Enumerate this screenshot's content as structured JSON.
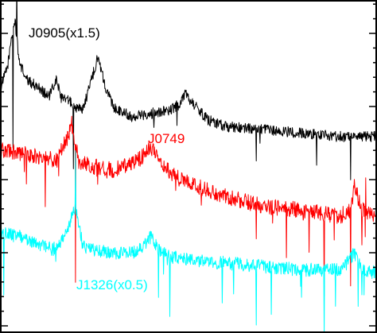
{
  "chart_data": {
    "type": "line",
    "title": "",
    "xlabel": "",
    "ylabel": "",
    "axis_ticks": "left and right edges, no tick labels",
    "x_domain": [
      0,
      1
    ],
    "y_domain": [
      0,
      1
    ],
    "series": [
      {
        "name": "J0905(x1.5)",
        "color": "#000000",
        "noise": 0.016,
        "spikes": [
          [
            0.035,
            -0.34
          ],
          [
            0.045,
            0.2
          ],
          [
            0.195,
            -0.18
          ],
          [
            0.68,
            -0.1
          ],
          [
            0.93,
            -0.12
          ],
          [
            0.84,
            -0.08
          ]
        ],
        "x": [
          0.0,
          0.02,
          0.03,
          0.04,
          0.05,
          0.07,
          0.1,
          0.13,
          0.15,
          0.16,
          0.18,
          0.2,
          0.22,
          0.25,
          0.26,
          0.28,
          0.3,
          0.35,
          0.4,
          0.45,
          0.48,
          0.49,
          0.52,
          0.55,
          0.6,
          0.7,
          0.8,
          0.9,
          1.0
        ],
        "y": [
          0.73,
          0.8,
          0.88,
          0.94,
          0.82,
          0.76,
          0.74,
          0.71,
          0.76,
          0.72,
          0.7,
          0.68,
          0.67,
          0.79,
          0.83,
          0.74,
          0.68,
          0.65,
          0.66,
          0.67,
          0.69,
          0.72,
          0.68,
          0.64,
          0.62,
          0.61,
          0.6,
          0.59,
          0.59
        ]
      },
      {
        "name": "J0749",
        "color": "#ff0000",
        "noise": 0.024,
        "spikes": [
          [
            0.2,
            -0.44
          ],
          [
            0.12,
            -0.13
          ],
          [
            0.76,
            -0.15
          ],
          [
            0.82,
            -0.14
          ],
          [
            0.86,
            -0.25
          ],
          [
            0.93,
            -0.22
          ],
          [
            0.96,
            -0.12
          ],
          [
            0.97,
            0.12
          ],
          [
            0.68,
            -0.09
          ]
        ],
        "x": [
          0.0,
          0.05,
          0.1,
          0.15,
          0.18,
          0.19,
          0.21,
          0.25,
          0.3,
          0.35,
          0.38,
          0.4,
          0.42,
          0.45,
          0.5,
          0.55,
          0.6,
          0.7,
          0.8,
          0.85,
          0.9,
          0.93,
          0.94,
          0.96,
          1.0
        ],
        "y": [
          0.55,
          0.54,
          0.53,
          0.52,
          0.59,
          0.63,
          0.51,
          0.5,
          0.49,
          0.51,
          0.53,
          0.56,
          0.53,
          0.48,
          0.45,
          0.43,
          0.41,
          0.38,
          0.37,
          0.36,
          0.35,
          0.37,
          0.44,
          0.37,
          0.35
        ]
      },
      {
        "name": "J1326(x0.5)",
        "color": "#00ffff",
        "noise": 0.02,
        "spikes": [
          [
            0.01,
            -0.17
          ],
          [
            0.2,
            0.2
          ],
          [
            0.42,
            -0.14
          ],
          [
            0.45,
            -0.18
          ],
          [
            0.59,
            -0.14
          ],
          [
            0.62,
            -0.08
          ],
          [
            0.68,
            -0.16
          ],
          [
            0.72,
            -0.13
          ],
          [
            0.8,
            -0.1
          ],
          [
            0.86,
            -0.19
          ],
          [
            0.89,
            -0.12
          ],
          [
            0.95,
            -0.14
          ]
        ],
        "x": [
          0.0,
          0.05,
          0.1,
          0.14,
          0.16,
          0.18,
          0.19,
          0.2,
          0.22,
          0.25,
          0.3,
          0.35,
          0.38,
          0.4,
          0.42,
          0.45,
          0.5,
          0.6,
          0.7,
          0.8,
          0.9,
          0.92,
          0.94,
          0.96,
          1.0
        ],
        "y": [
          0.3,
          0.29,
          0.27,
          0.25,
          0.27,
          0.31,
          0.35,
          0.38,
          0.26,
          0.25,
          0.24,
          0.24,
          0.26,
          0.29,
          0.25,
          0.23,
          0.22,
          0.21,
          0.2,
          0.19,
          0.19,
          0.21,
          0.24,
          0.19,
          0.18
        ]
      }
    ],
    "labels": [
      {
        "text": "J0905(x1.5)",
        "color": "#000000"
      },
      {
        "text": "J0749",
        "color": "#ff0000"
      },
      {
        "text": "J1326(x0.5)",
        "color": "#00ffff"
      }
    ]
  }
}
